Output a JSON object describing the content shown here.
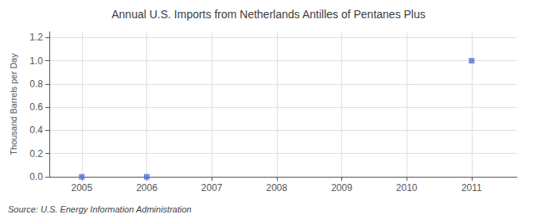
{
  "chart_data": {
    "type": "scatter",
    "title": "Annual U.S. Imports from Netherlands Antilles of Pentanes Plus",
    "ylabel": "Thousand Barrels per Day",
    "source": "Source: U.S. Energy Information Administration",
    "x": [
      2005,
      2006,
      2011
    ],
    "values": [
      0.0,
      0.0,
      1.0
    ],
    "marker": "square",
    "xlim": [
      2004.5,
      2011.7
    ],
    "xticks": [
      2005,
      2006,
      2007,
      2008,
      2009,
      2010,
      2011
    ],
    "ylim": [
      0.0,
      1.25
    ],
    "yticks": [
      {
        "value": 0.0,
        "label": "0.0"
      },
      0.2,
      0.4,
      0.6,
      0.8,
      {
        "value": 1.0,
        "label": "1.0"
      },
      1.2
    ],
    "grid": true
  }
}
